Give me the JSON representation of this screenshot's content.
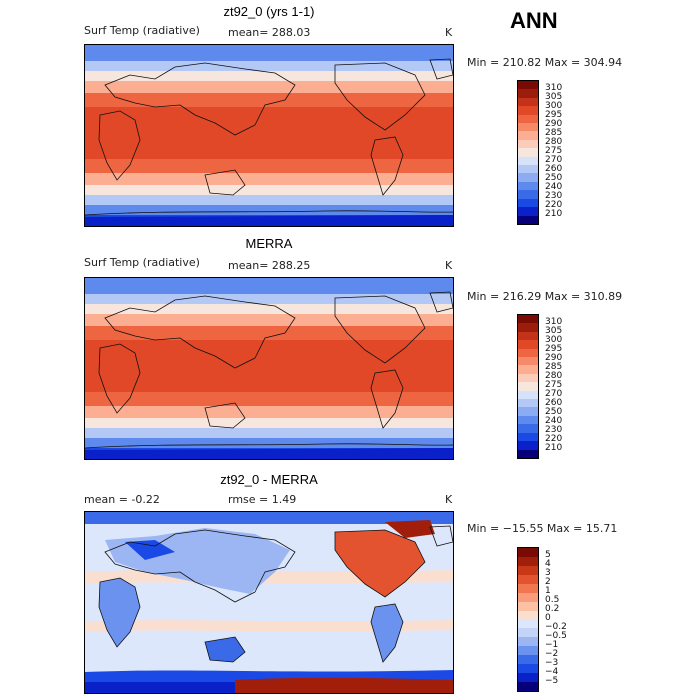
{
  "season": "ANN",
  "panels": [
    {
      "title": "zt92_0 (yrs 1-1)",
      "left_label": "Surf Temp (radiative)",
      "mid_label": "mean= 288.03",
      "units": "K",
      "minmax": "Min = 210.82 Max = 304.94"
    },
    {
      "title": "MERRA",
      "left_label": "Surf Temp (radiative)",
      "mid_label": "mean= 288.25",
      "units": "K",
      "minmax": "Min = 216.29 Max = 310.89"
    },
    {
      "title": "zt92_0 - MERRA",
      "left_label": "mean =   -0.22",
      "mid_label": "rmse =    1.49",
      "units": "K",
      "minmax": "Min = −15.55 Max =   15.71"
    }
  ],
  "colors": {
    "abs_scale": [
      "#08007a",
      "#0a20c8",
      "#1a49e6",
      "#3a6ae8",
      "#5e8aee",
      "#8cabf3",
      "#b4c8f6",
      "#d6e2fa",
      "#f6e6de",
      "#fcccb8",
      "#fbae92",
      "#f68a68",
      "#ee6542",
      "#e04828",
      "#c5321a",
      "#9c1d0c",
      "#7a0a04"
    ],
    "diff_scale": [
      "#08007a",
      "#0a20c8",
      "#1a49e6",
      "#3a6ae8",
      "#6a92ee",
      "#9cb6f3",
      "#c4d4f7",
      "#dde7fb",
      "#fadfd0",
      "#fcc0a5",
      "#f99c7a",
      "#f2764f",
      "#e4532f",
      "#c83818",
      "#a01e0a",
      "#7a0a04"
    ]
  },
  "chart_data": [
    {
      "type": "heatmap",
      "title": "zt92_0 (yrs 1-1)",
      "variable": "Surf Temp (radiative)",
      "units": "K",
      "mean": 288.03,
      "min": 210.82,
      "max": 304.94,
      "contour_levels": [
        210,
        220,
        230,
        240,
        250,
        260,
        270,
        275,
        280,
        285,
        290,
        295,
        300,
        305,
        310
      ]
    },
    {
      "type": "heatmap",
      "title": "MERRA",
      "variable": "Surf Temp (radiative)",
      "units": "K",
      "mean": 288.25,
      "min": 216.29,
      "max": 310.89,
      "contour_levels": [
        210,
        220,
        230,
        240,
        250,
        260,
        270,
        275,
        280,
        285,
        290,
        295,
        300,
        305,
        310
      ]
    },
    {
      "type": "heatmap",
      "title": "zt92_0 - MERRA",
      "units": "K",
      "mean": -0.22,
      "rmse": 1.49,
      "min": -15.55,
      "max": 15.71,
      "contour_levels": [
        -5,
        -4,
        -3,
        -2,
        -1,
        -0.5,
        -0.2,
        0,
        0.2,
        0.5,
        1,
        2,
        3,
        4,
        5
      ]
    }
  ],
  "colorbar_labels": {
    "abs": [
      "310",
      "305",
      "300",
      "295",
      "290",
      "285",
      "280",
      "275",
      "270",
      "260",
      "250",
      "240",
      "230",
      "220",
      "210"
    ],
    "diff": [
      "5",
      "4",
      "3",
      "2",
      "1",
      "0.5",
      "0.2",
      "0",
      "−0.2",
      "−0.5",
      "−1",
      "−2",
      "−3",
      "−4",
      "−5"
    ]
  }
}
